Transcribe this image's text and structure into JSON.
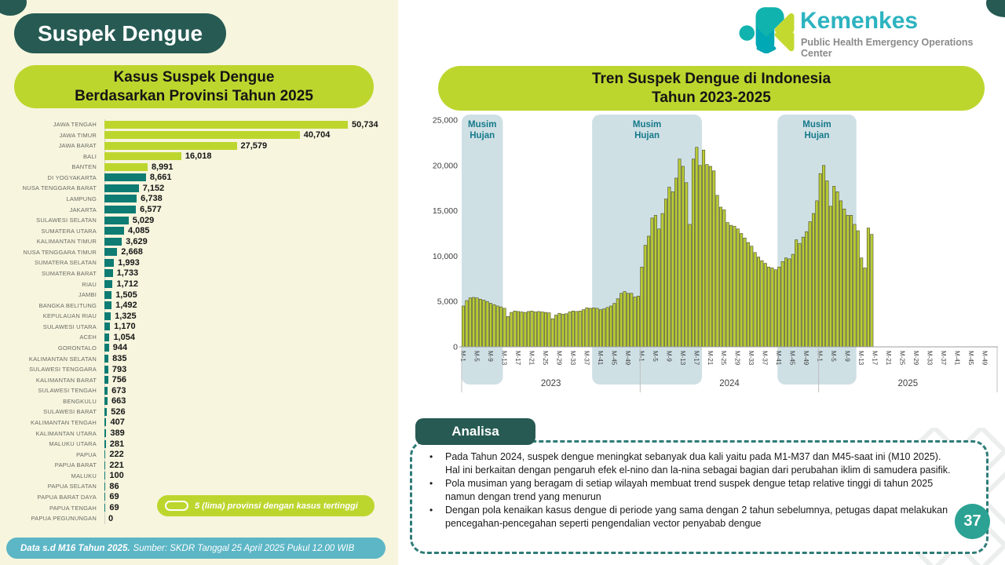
{
  "page": {
    "title_badge": "Suspek Dengue",
    "footer_bold": "Data s.d M16 Tahun 2025.",
    "footer_rest": "Sumber: SKDR Tanggal 25 April 2025 Pukul 12.00 WIB",
    "page_number": "37"
  },
  "logo": {
    "name": "Kemenkes",
    "subtitle": "Public Health Emergency Operations Center"
  },
  "analysis": {
    "header": "Analisa",
    "bullets": [
      "Pada Tahun 2024, suspek dengue meningkat sebanyak dua kali yaitu pada M1-M37 dan M45-saat ini (M10 2025). Hal ini berkaitan dengan pengaruh efek el-nino dan la-nina sebagai bagian dari perubahan iklim di samudera pasifik.",
      "Pola musiman yang beragam di setiap wilayah membuat trend suspek dengue tetap relative tinggi di tahun 2025 namun dengan trend yang menurun",
      "Dengan pola kenaikan kasus dengue di periode yang sama dengan 2 tahun sebelumnya, petugas dapat melakukan pencegahan-pencegahan seperti pengendalian vector penyabab dengue"
    ]
  },
  "colors": {
    "cream_bg": "#f7f5de",
    "dark_teal": "#265a52",
    "lime": "#bdd62e",
    "teal_bar": "#0e7c73",
    "trend_bar_fill": "#b9cc33",
    "trend_bar_stroke": "#4a4a2e",
    "band_fill": "#cfe0e5",
    "band_text": "#15798a",
    "footer_blue": "#5cb6c6",
    "kemenkes_teal": "#2db3c0",
    "page_circle": "#2ba293"
  },
  "chart_data": [
    {
      "type": "bar",
      "orientation": "horizontal",
      "title_lines": [
        "Kasus Suspek Dengue",
        "Berdasarkan Provinsi Tahun 2025"
      ],
      "legend": "5 (lima) provinsi dengan kasus tertinggi",
      "highlight_top_n": 5,
      "xlim": [
        0,
        52000
      ],
      "categories": [
        "JAWA TENGAH",
        "JAWA TIMUR",
        "JAWA BARAT",
        "BALI",
        "BANTEN",
        "DI YOGYAKARTA",
        "NUSA TENGGARA BARAT",
        "LAMPUNG",
        "JAKARTA",
        "SULAWESI SELATAN",
        "SUMATERA UTARA",
        "KALIMANTAN TIMUR",
        "NUSA TENGGARA TIMUR",
        "SUMATERA SELATAN",
        "SUMATERA BARAT",
        "RIAU",
        "JAMBI",
        "BANGKA BELITUNG",
        "KEPULAUAN RIAU",
        "SULAWESI UTARA",
        "ACEH",
        "GORONTALO",
        "KALIMANTAN SELATAN",
        "SULAWESI TENGGARA",
        "KALIMANTAN BARAT",
        "SULAWESI TENGAH",
        "BENGKULU",
        "SULAWESI BARAT",
        "KALIMANTAN TENGAH",
        "KALIMANTAN UTARA",
        "MALUKU UTARA",
        "PAPUA",
        "PAPUA BARAT",
        "MALUKU",
        "PAPUA SELATAN",
        "PAPUA BARAT DAYA",
        "PAPUA TENGAH",
        "PAPUA PEGUNUNGAN"
      ],
      "values": [
        50734,
        40704,
        27579,
        16018,
        8991,
        8661,
        7152,
        6738,
        6577,
        5029,
        4085,
        3629,
        2668,
        1993,
        1733,
        1712,
        1505,
        1492,
        1325,
        1170,
        1054,
        944,
        835,
        793,
        756,
        673,
        663,
        526,
        407,
        389,
        281,
        222,
        221,
        100,
        86,
        69,
        69,
        0
      ]
    },
    {
      "type": "bar",
      "title_lines": [
        "Tren Suspek Dengue di Indonesia",
        "Tahun 2023-2025"
      ],
      "ylim": [
        0,
        25000
      ],
      "ytick_labels": [
        "25,000",
        "20,000",
        "15,000",
        "10,000",
        "5,000",
        "0"
      ],
      "tick_labels": [
        "M-1",
        "M-5",
        "M-9",
        "M-13",
        "M-17",
        "M-21",
        "M-25",
        "M-29",
        "M-33",
        "M-37",
        "M-41",
        "M-45",
        "M-49"
      ],
      "weeks_per_year": 52,
      "bands": [
        {
          "label": "Musim Hujan",
          "start_week": 0,
          "end_week": 12
        },
        {
          "label": "Musim Hujan",
          "start_week": 38,
          "end_week": 70
        },
        {
          "label": "Musim Hujan",
          "start_week": 92,
          "end_week": 115
        }
      ],
      "series": [
        {
          "year": "2023",
          "values": [
            4500,
            5100,
            5400,
            5450,
            5400,
            5250,
            5150,
            5000,
            4800,
            4650,
            4500,
            4400,
            4250,
            3350,
            3800,
            3950,
            3900,
            3850,
            3800,
            3900,
            3950,
            3850,
            3900,
            3850,
            3800,
            3750,
            3100,
            3500,
            3700,
            3600,
            3650,
            3850,
            3950,
            3900,
            3950,
            4100,
            4300,
            4250,
            4300,
            4250,
            4100,
            4200,
            4350,
            4500,
            4800,
            5300,
            5900,
            6100,
            5900,
            5900,
            5500,
            5600
          ]
        },
        {
          "year": "2024",
          "values": [
            8800,
            11200,
            12200,
            14200,
            14500,
            13000,
            14700,
            16300,
            17600,
            17100,
            18600,
            20700,
            19900,
            18100,
            13500,
            20700,
            22000,
            20000,
            21700,
            20100,
            19900,
            19400,
            16700,
            15400,
            15100,
            13700,
            13400,
            13300,
            13000,
            12500,
            12000,
            11500,
            11100,
            10400,
            9900,
            9500,
            9200,
            8800,
            8700,
            8500,
            8800,
            9400,
            9800,
            9700,
            10200,
            11800,
            11400,
            12100,
            12700,
            13800,
            14700,
            16100
          ]
        },
        {
          "year": "2025",
          "values": [
            19100,
            20000,
            18300,
            15500,
            17700,
            17100,
            16100,
            15200,
            14500,
            14500,
            13500,
            12800,
            9800,
            8700,
            13100,
            12400
          ]
        }
      ]
    }
  ]
}
